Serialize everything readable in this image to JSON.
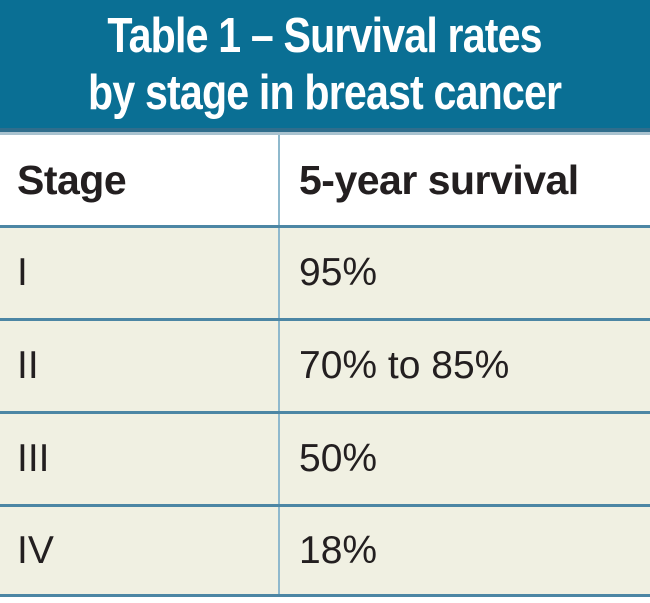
{
  "header": {
    "title": "Table 1 – Survival rates by stage in breast cancer",
    "title_line1": "Table 1 – Survival rates",
    "title_line2": "by stage in breast cancer"
  },
  "table": {
    "columns": [
      "Stage",
      "5-year survival"
    ],
    "rows": [
      {
        "stage": "I",
        "survival": "95%"
      },
      {
        "stage": "II",
        "survival": "70% to 85%"
      },
      {
        "stage": "III",
        "survival": "50%"
      },
      {
        "stage": "IV",
        "survival": "18%"
      }
    ]
  },
  "colors": {
    "title_band_teal": "#0a6f94",
    "title_text": "#ffffff",
    "band_edge_dark": "#2f6d8c",
    "band_edge_light": "#a9c2cf",
    "row_separator_blue": "#4c86a4",
    "column_divider_blue": "#8fb9cd",
    "row_background_beige": "#f0f0e2",
    "header_row_background": "#ffffff",
    "cell_text": "#231f20"
  },
  "chart_data": {
    "type": "table",
    "title": "Table 1 – Survival rates by stage in breast cancer",
    "columns": [
      "Stage",
      "5-year survival"
    ],
    "rows": [
      [
        "I",
        "95%"
      ],
      [
        "II",
        "70% to 85%"
      ],
      [
        "III",
        "50%"
      ],
      [
        "IV",
        "18%"
      ]
    ]
  }
}
